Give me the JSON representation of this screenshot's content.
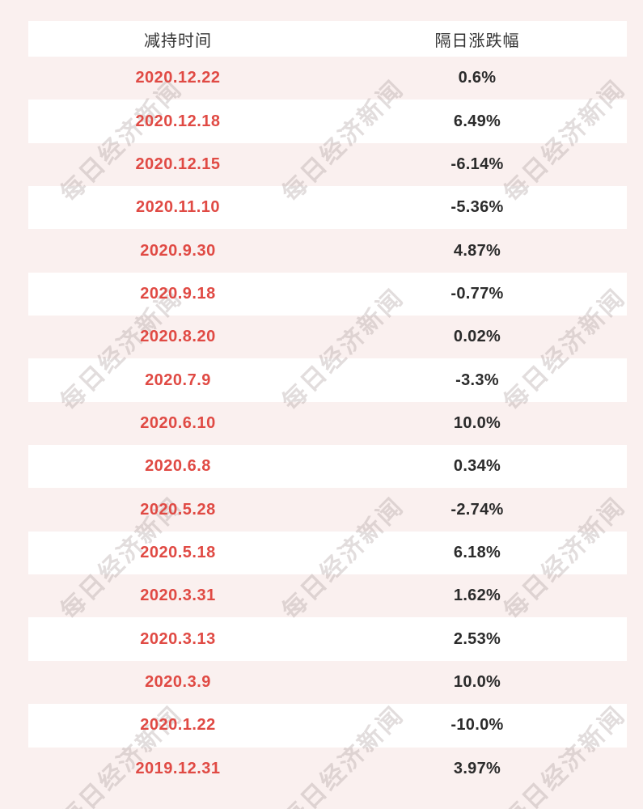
{
  "chart_data": {
    "type": "table",
    "columns": [
      {
        "label": "减持时间"
      },
      {
        "label": "隔日涨跌幅"
      }
    ],
    "rows": [
      {
        "date": "2020.12.22",
        "change": "0.6%",
        "change_value": 0.6
      },
      {
        "date": "2020.12.18",
        "change": "6.49%",
        "change_value": 6.49
      },
      {
        "date": "2020.12.15",
        "change": "-6.14%",
        "change_value": -6.14
      },
      {
        "date": "2020.11.10",
        "change": "-5.36%",
        "change_value": -5.36
      },
      {
        "date": "2020.9.30",
        "change": "4.87%",
        "change_value": 4.87
      },
      {
        "date": "2020.9.18",
        "change": "-0.77%",
        "change_value": -0.77
      },
      {
        "date": "2020.8.20",
        "change": "0.02%",
        "change_value": 0.02
      },
      {
        "date": "2020.7.9",
        "change": "-3.3%",
        "change_value": -3.3
      },
      {
        "date": "2020.6.10",
        "change": "10.0%",
        "change_value": 10.0
      },
      {
        "date": "2020.6.8",
        "change": "0.34%",
        "change_value": 0.34
      },
      {
        "date": "2020.5.28",
        "change": "-2.74%",
        "change_value": -2.74
      },
      {
        "date": "2020.5.18",
        "change": "6.18%",
        "change_value": 6.18
      },
      {
        "date": "2020.3.31",
        "change": "1.62%",
        "change_value": 1.62
      },
      {
        "date": "2020.3.13",
        "change": "2.53%",
        "change_value": 2.53
      },
      {
        "date": "2020.3.9",
        "change": "10.0%",
        "change_value": 10.0
      },
      {
        "date": "2020.1.22",
        "change": "-10.0%",
        "change_value": -10.0
      },
      {
        "date": "2019.12.31",
        "change": "3.97%",
        "change_value": 3.97
      }
    ],
    "watermark_text": "每日经济新闻",
    "colors": {
      "page_background": "#faf0ef",
      "row_white": "#ffffff",
      "row_pink": "#faf0ef",
      "date_text": "#e04a44",
      "change_text": "#2b2b2b",
      "header_text": "#333333",
      "watermark": "#d6cbca"
    }
  }
}
